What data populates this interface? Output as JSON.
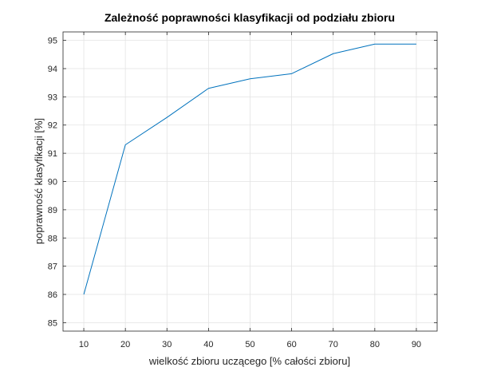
{
  "chart_data": {
    "type": "line",
    "title": "Zależność poprawności klasyfikacji od podziału zbioru",
    "xlabel": "wielkość zbioru uczącego [% całości zbioru]",
    "ylabel": "poprawność klasyfikacji [%]",
    "xlim": [
      5,
      95
    ],
    "ylim": [
      84.7,
      95.3
    ],
    "xticks": [
      10,
      20,
      30,
      40,
      50,
      60,
      70,
      80,
      90
    ],
    "yticks": [
      85,
      86,
      87,
      88,
      89,
      90,
      91,
      92,
      93,
      94,
      95
    ],
    "grid": true,
    "series": [
      {
        "color": "#0072BD",
        "x": [
          10,
          20,
          30,
          40,
          50,
          60,
          70,
          80,
          90
        ],
        "y": [
          86.0,
          91.3,
          92.27,
          93.3,
          93.64,
          93.82,
          94.53,
          94.87,
          94.87
        ]
      }
    ]
  }
}
